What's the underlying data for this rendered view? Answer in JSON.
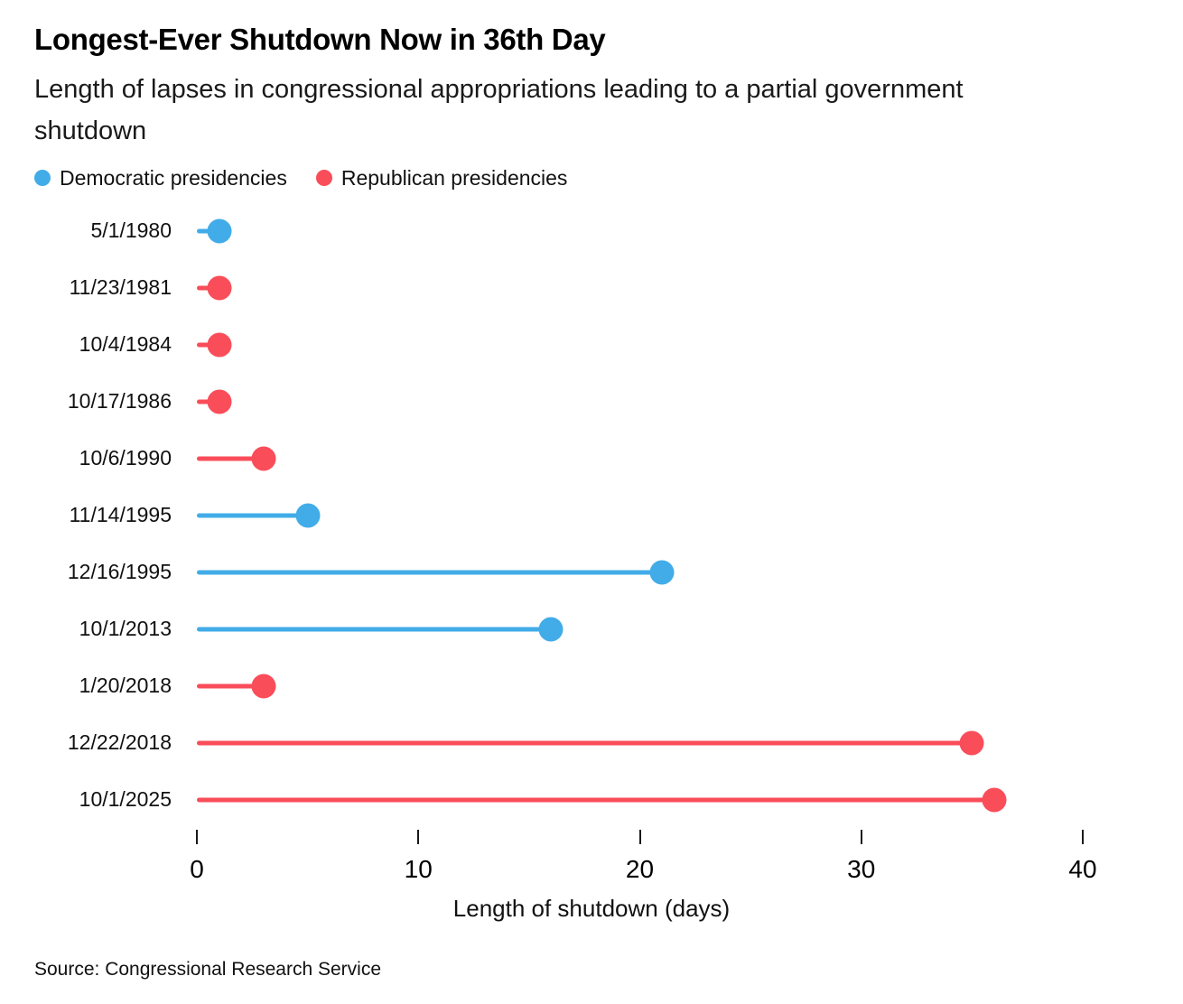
{
  "chart_data": {
    "type": "bar",
    "subtype": "horizontal-lollipop",
    "title": "Longest-Ever Shutdown Now in 36th Day",
    "subtitle": "Length of lapses in congressional appropriations leading to a partial government shutdown",
    "legend": [
      {
        "label": "Democratic presidencies",
        "party": "dem"
      },
      {
        "label": "Republican presidencies",
        "party": "rep"
      }
    ],
    "legend_position": "top-left",
    "colors": {
      "dem": "#42ACE8",
      "rep": "#F94D5A"
    },
    "categories": [
      "5/1/1980",
      "11/23/1981",
      "10/4/1984",
      "10/17/1986",
      "10/6/1990",
      "11/14/1995",
      "12/16/1995",
      "10/1/2013",
      "1/20/2018",
      "12/22/2018",
      "10/1/2025"
    ],
    "values": [
      1,
      1,
      1,
      1,
      3,
      5,
      21,
      16,
      3,
      35,
      36
    ],
    "party": [
      "dem",
      "rep",
      "rep",
      "rep",
      "rep",
      "dem",
      "dem",
      "dem",
      "rep",
      "rep",
      "rep"
    ],
    "xlabel": "Length of shutdown (days)",
    "x_ticks": [
      0,
      10,
      20,
      30,
      40
    ],
    "xlim": [
      0,
      40
    ],
    "grid": false
  },
  "footer": {
    "source": "Source: Congressional Research Service"
  }
}
